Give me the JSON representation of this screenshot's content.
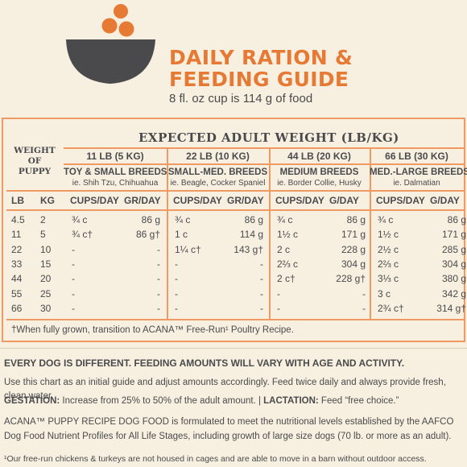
{
  "header": {
    "title_line1": "DAILY RATION &",
    "title_line2": "FEEDING GUIDE",
    "subtitle": "8 fl. oz cup is 114 g of food",
    "colors": {
      "accent": "#e67a35",
      "bowl": "#4a4a4c"
    },
    "icon": "bowl-with-kibble-icon"
  },
  "table": {
    "heading": "EXPECTED ADULT WEIGHT (LB/KG)",
    "weight_of_puppy": [
      "WEIGHT",
      "OF",
      "PUPPY"
    ],
    "lb_label": "LB",
    "kg_label": "KG",
    "groups": [
      {
        "weight": "11 LB (5 KG)",
        "breed": "TOY & SMALL BREEDS",
        "example": "ie. Shih Tzu, Chihuahua",
        "cups_label": "CUPS/DAY",
        "grams_label": "GR/DAY"
      },
      {
        "weight": "22 LB (10 KG)",
        "breed": "SMALL-MED. BREEDS",
        "example": "ie. Beagle, Cocker Spaniel",
        "cups_label": "CUPS/DAY",
        "grams_label": "GR/DAY"
      },
      {
        "weight": "44 LB (20 KG)",
        "breed": "MEDIUM BREEDS",
        "example": "ie. Border Collie, Husky",
        "cups_label": "CUPS/DAY",
        "grams_label": "G/DAY"
      },
      {
        "weight": "66 LB (30 KG)",
        "breed": "MED.-LARGE BREEDS",
        "example": "ie. Dalmatian",
        "cups_label": "CUPS/DAY",
        "grams_label": "G/DAY"
      }
    ],
    "rows": [
      {
        "lb": "4.5",
        "kg": "2",
        "c": [
          [
            "¾ c",
            "86 g"
          ],
          [
            "¾ c",
            "86 g"
          ],
          [
            "¾ c",
            "86 g"
          ],
          [
            "¾ c",
            "86 g"
          ]
        ]
      },
      {
        "lb": "11",
        "kg": "5",
        "c": [
          [
            "¾ c†",
            "86 g†"
          ],
          [
            "1 c",
            "114 g"
          ],
          [
            "1½ c",
            "171 g"
          ],
          [
            "1½ c",
            "171 g"
          ]
        ]
      },
      {
        "lb": "22",
        "kg": "10",
        "c": [
          [
            "-",
            "-"
          ],
          [
            "1¼ c†",
            "143 g†"
          ],
          [
            "2 c",
            "228 g"
          ],
          [
            "2½ c",
            "285 g"
          ]
        ]
      },
      {
        "lb": "33",
        "kg": "15",
        "c": [
          [
            "-",
            "-"
          ],
          [
            "-",
            "-"
          ],
          [
            "2⅔ c",
            "304 g"
          ],
          [
            "2⅔ c",
            "304 g"
          ]
        ]
      },
      {
        "lb": "44",
        "kg": "20",
        "c": [
          [
            "-",
            "-"
          ],
          [
            "-",
            "-"
          ],
          [
            "2 c†",
            "228 g†"
          ],
          [
            "3⅓ c",
            "380 g"
          ]
        ]
      },
      {
        "lb": "55",
        "kg": "25",
        "c": [
          [
            "-",
            "-"
          ],
          [
            "-",
            "-"
          ],
          [
            "-",
            "-"
          ],
          [
            "3 c",
            "342 g"
          ]
        ]
      },
      {
        "lb": "66",
        "kg": "30",
        "c": [
          [
            "-",
            "-"
          ],
          [
            "-",
            "-"
          ],
          [
            "-",
            "-"
          ],
          [
            "2¾ c†",
            "314 g†"
          ]
        ]
      }
    ],
    "footnote": "†When fully grown, transition to ACANA™ Free-Run¹ Poultry Recipe."
  },
  "notes": {
    "headline": "EVERY DOG IS DIFFERENT. FEEDING AMOUNTS WILL VARY WITH AGE AND ACTIVITY.",
    "guide": "Use this chart as an initial guide and adjust amounts accordingly. Feed twice daily and always provide fresh, clean water.",
    "gestation_label": "GESTATION:",
    "gestation_text": " Increase from 25% to 50% of the adult amount. | ",
    "lactation_label": "LACTATION:",
    "lactation_text": " Feed “free choice.”",
    "aafco": "ACANA™ PUPPY RECIPE DOG FOOD is formulated to meet the nutritional levels established by the AAFCO Dog Food Nutrient Profiles for All Life Stages, including growth of large size dogs (70 lb. or more as an adult).",
    "freerun": "¹Our free-run chickens & turkeys are not housed in cages and are able to move in a barn without outdoor access."
  }
}
